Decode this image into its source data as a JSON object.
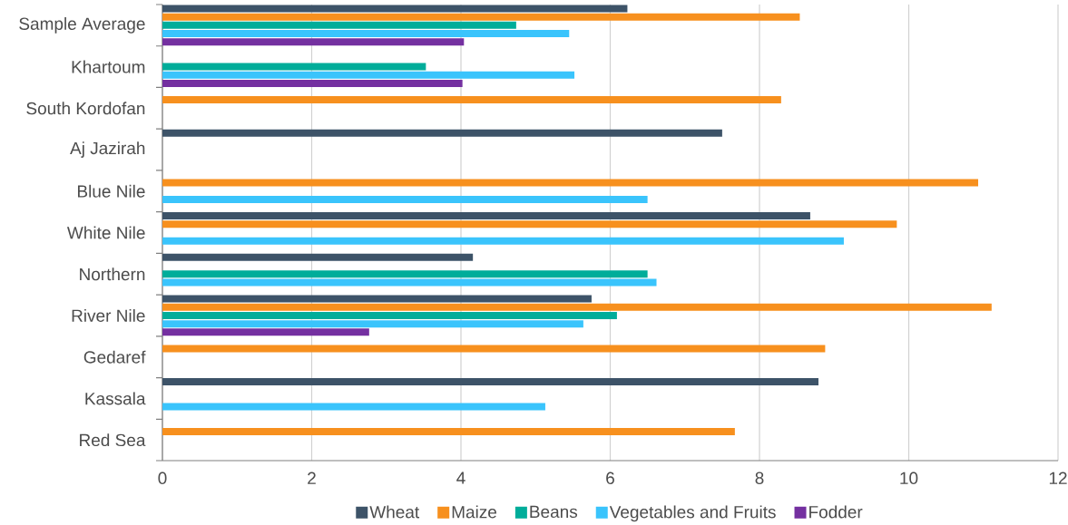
{
  "chart_data": {
    "type": "bar",
    "orientation": "horizontal",
    "categories": [
      "Sample Average",
      "Khartoum",
      "South Kordofan",
      "Aj Jazirah",
      "Blue Nile",
      "White Nile",
      "Northern",
      "River Nile",
      "Gedaref",
      "Kassala",
      "Red Sea"
    ],
    "series": [
      {
        "name": "Wheat",
        "color": "#3d5368",
        "values": [
          6.23,
          null,
          null,
          7.5,
          null,
          8.68,
          4.16,
          5.75,
          null,
          8.79,
          null
        ]
      },
      {
        "name": "Maize",
        "color": "#f7901e",
        "values": [
          8.54,
          null,
          8.29,
          null,
          10.93,
          9.84,
          null,
          11.11,
          8.88,
          null,
          7.67
        ]
      },
      {
        "name": "Beans",
        "color": "#00ad9a",
        "values": [
          4.74,
          3.53,
          null,
          null,
          null,
          null,
          6.5,
          6.09,
          null,
          null,
          null
        ]
      },
      {
        "name": "Vegetables and Fruits",
        "color": "#3ac4fc",
        "values": [
          5.45,
          5.52,
          null,
          null,
          6.5,
          9.13,
          6.62,
          5.64,
          null,
          5.13,
          null
        ]
      },
      {
        "name": "Fodder",
        "color": "#7430a0",
        "values": [
          4.04,
          4.02,
          null,
          null,
          null,
          null,
          null,
          2.77,
          null,
          null,
          null
        ]
      }
    ],
    "xlim": [
      0,
      12
    ],
    "xticks": [
      0,
      2,
      4,
      6,
      8,
      10,
      12
    ],
    "grid": "x",
    "legend": "bottom"
  }
}
